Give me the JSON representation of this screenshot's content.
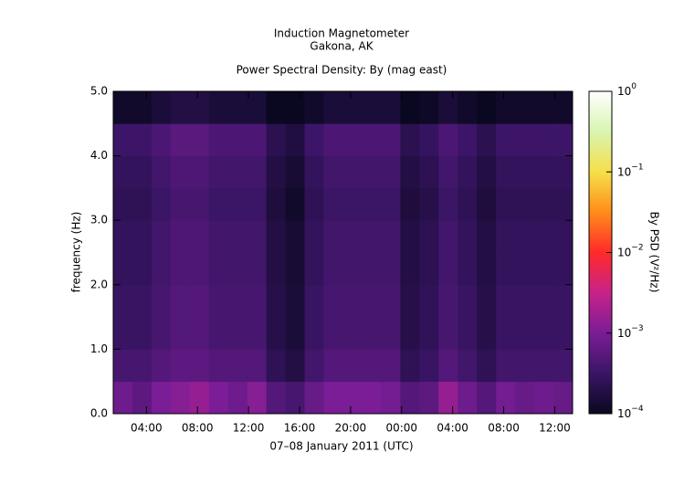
{
  "chart_data": {
    "type": "heatmap",
    "title": "Induction Magnetometer",
    "subtitle": "Gakona, AK",
    "plot_title": "Power Spectral Density: By (mag east)",
    "xlabel": "07–08 January 2011 (UTC)",
    "ylabel": "frequency (Hz)",
    "colorbar_label": "By PSD (V²/Hz)",
    "x": [
      1.4,
      2.9,
      4.4,
      5.9,
      7.4,
      8.9,
      10.4,
      11.9,
      13.4,
      14.9,
      16.4,
      17.9,
      19.4,
      20.9,
      22.4,
      23.9,
      25.4,
      26.9,
      28.4,
      29.9,
      31.4,
      32.9,
      34.4,
      35.9,
      37.4
    ],
    "y": [
      0,
      0.5,
      1,
      1.5,
      2,
      2.5,
      3,
      3.5,
      4,
      4.5,
      5
    ],
    "z": [
      [
        0.0008,
        0.0006,
        0.001,
        0.0012,
        0.0015,
        0.001,
        0.0008,
        0.0012,
        0.0005,
        0.0004,
        0.0007,
        0.001,
        0.001,
        0.001,
        0.0009,
        0.0005,
        0.0006,
        0.0015,
        0.0008,
        0.0005,
        0.0009,
        0.0007,
        0.0008,
        0.0007
      ],
      [
        0.0004,
        0.0004,
        0.0005,
        0.0006,
        0.0006,
        0.0005,
        0.0005,
        0.0005,
        0.00024,
        0.00018,
        0.00036,
        0.0005,
        0.0005,
        0.0005,
        0.0005,
        0.00024,
        0.0003,
        0.0005,
        0.00036,
        0.00024,
        0.00036,
        0.00036,
        0.00036,
        0.00036
      ],
      [
        0.0003,
        0.0003,
        0.0004,
        0.0005,
        0.0005,
        0.0004,
        0.0004,
        0.0004,
        0.0002,
        0.00015,
        0.0003,
        0.0004,
        0.0004,
        0.0004,
        0.0004,
        0.0002,
        0.00025,
        0.0004,
        0.0003,
        0.0002,
        0.0003,
        0.0003,
        0.0003,
        0.0003
      ],
      [
        0.0003,
        0.0003,
        0.0004,
        0.0005,
        0.0005,
        0.0004,
        0.0004,
        0.0004,
        0.0002,
        0.00015,
        0.0003,
        0.0004,
        0.0004,
        0.0004,
        0.0004,
        0.0002,
        0.00025,
        0.0004,
        0.0003,
        0.0002,
        0.0003,
        0.0003,
        0.0003,
        0.0003
      ],
      [
        0.00027,
        0.00027,
        0.00036,
        0.00045,
        0.00045,
        0.00036,
        0.00036,
        0.00036,
        0.00018,
        0.00014,
        0.00027,
        0.00036,
        0.00036,
        0.00036,
        0.00036,
        0.00018,
        0.00023,
        0.00036,
        0.00027,
        0.00018,
        0.00027,
        0.00027,
        0.00027,
        0.00027
      ],
      [
        0.00027,
        0.00027,
        0.00036,
        0.00045,
        0.00045,
        0.00036,
        0.00036,
        0.00036,
        0.00018,
        0.00014,
        0.00027,
        0.00036,
        0.00036,
        0.00036,
        0.00036,
        0.00018,
        0.00023,
        0.00036,
        0.00027,
        0.00018,
        0.00027,
        0.00027,
        0.00027,
        0.00027
      ],
      [
        0.00024,
        0.00024,
        0.00032,
        0.0004,
        0.0004,
        0.00032,
        0.00032,
        0.00032,
        0.00016,
        0.00012,
        0.00024,
        0.00032,
        0.00032,
        0.00032,
        0.00032,
        0.00016,
        0.0002,
        0.00032,
        0.00024,
        0.00016,
        0.00024,
        0.00024,
        0.00024,
        0.00024
      ],
      [
        0.00027,
        0.00027,
        0.00036,
        0.00045,
        0.00045,
        0.00036,
        0.00036,
        0.00036,
        0.00018,
        0.00014,
        0.00027,
        0.00036,
        0.00036,
        0.00036,
        0.00036,
        0.00018,
        0.00023,
        0.00036,
        0.00027,
        0.00018,
        0.00027,
        0.00027,
        0.00027,
        0.00027
      ],
      [
        0.00033,
        0.00033,
        0.00044,
        0.00055,
        0.00055,
        0.00044,
        0.00044,
        0.00044,
        0.00022,
        0.00017,
        0.00033,
        0.00044,
        0.00044,
        0.00044,
        0.00044,
        0.00022,
        0.00028,
        0.00044,
        0.00033,
        0.00022,
        0.00033,
        0.00033,
        0.00033,
        0.00033
      ],
      [
        0.00012,
        0.00012,
        0.00015,
        0.00018,
        0.00018,
        0.00015,
        0.00015,
        0.00015,
        0.0001,
        0.0001,
        0.00012,
        0.00015,
        0.00015,
        0.00015,
        0.00015,
        0.0001,
        0.00011,
        0.00015,
        0.00012,
        0.0001,
        0.00012,
        0.00012,
        0.00012,
        0.00012
      ]
    ],
    "xlim": [
      1.4,
      37.4
    ],
    "xticks": [
      {
        "value": 4,
        "label": "04:00"
      },
      {
        "value": 8,
        "label": "08:00"
      },
      {
        "value": 12,
        "label": "12:00"
      },
      {
        "value": 16,
        "label": "16:00"
      },
      {
        "value": 20,
        "label": "20:00"
      },
      {
        "value": 24,
        "label": "00:00"
      },
      {
        "value": 28,
        "label": "04:00"
      },
      {
        "value": 32,
        "label": "08:00"
      },
      {
        "value": 36,
        "label": "12:00"
      }
    ],
    "ylim": [
      0,
      5
    ],
    "yticks": [
      {
        "value": 0,
        "label": "0.0"
      },
      {
        "value": 1,
        "label": "1.0"
      },
      {
        "value": 2,
        "label": "2.0"
      },
      {
        "value": 3,
        "label": "3.0"
      },
      {
        "value": 4,
        "label": "4.0"
      },
      {
        "value": 5,
        "label": "5.0"
      }
    ],
    "clim": [
      0.0001,
      1
    ],
    "color_scale": "log",
    "cticks": [
      {
        "value": 0.0001,
        "label": "10",
        "exponent": "−4"
      },
      {
        "value": 0.001,
        "label": "10",
        "exponent": "−3"
      },
      {
        "value": 0.01,
        "label": "10",
        "exponent": "−2"
      },
      {
        "value": 0.1,
        "label": "10",
        "exponent": "−1"
      },
      {
        "value": 1,
        "label": "10",
        "exponent": "0"
      }
    ],
    "colormap": [
      "#0a0820",
      "#3a1566",
      "#7a1d96",
      "#c8228a",
      "#ff2a2a",
      "#ff8c1a",
      "#f5e04a",
      "#d8f5b0",
      "#ffffff"
    ]
  }
}
